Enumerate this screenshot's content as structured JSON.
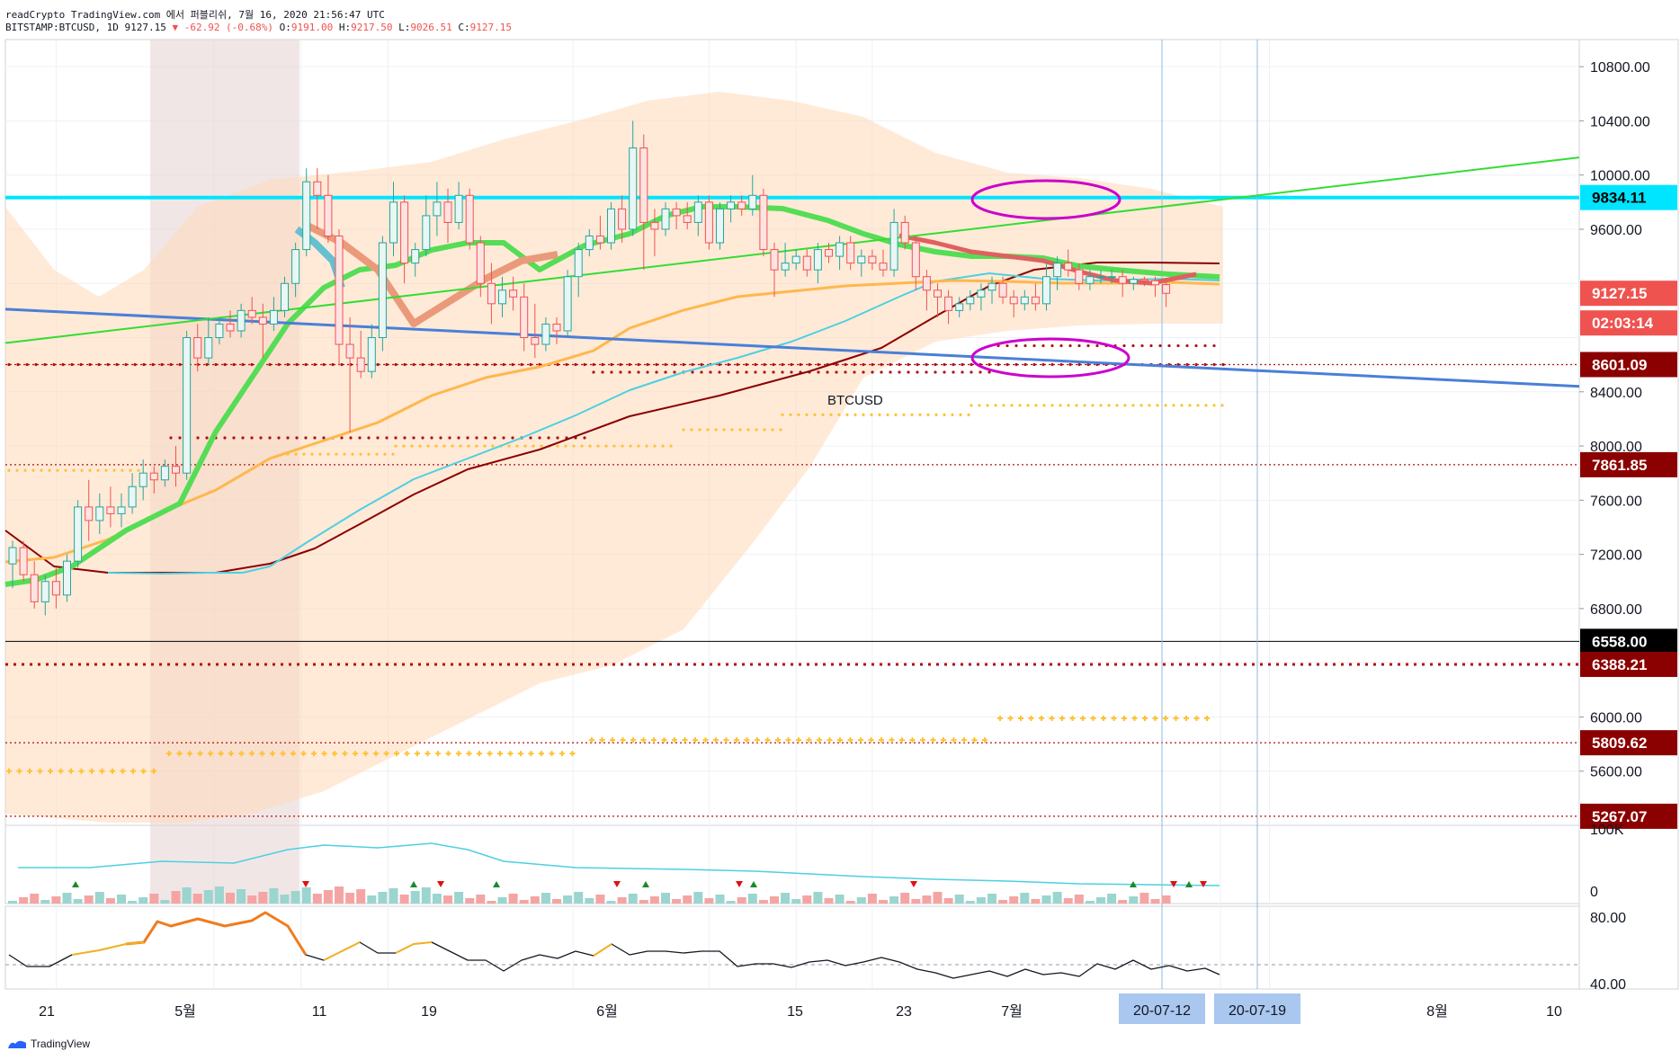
{
  "header": {
    "title_line": "readCrypto TradingView.com 에서 퍼블리쉬, 7월 16, 2020 21:56:47 UTC",
    "symbol": "BITSTAMP:BTCUSD, 1D",
    "last": "9127.15",
    "change": "-62.92 (-0.68%)",
    "open_label": "O:",
    "open": "9191.00",
    "high_label": "H:",
    "high": "9217.50",
    "low_label": "L:",
    "low": "9026.51",
    "close_label": "C:",
    "close": "9127.15"
  },
  "chart_data": [
    {
      "type": "candlestick",
      "symbol_label": "BTCUSD",
      "ylim": [
        5200,
        11000
      ],
      "y_ticks": [
        "10800.00",
        "10400.00",
        "10000.00",
        "9600.00",
        "8400.00",
        "8000.00",
        "7600.00",
        "7200.00",
        "6800.00",
        "6000.00",
        "5600.00"
      ],
      "x_ticks": [
        "21",
        "5월",
        "11",
        "19",
        "6월",
        "15",
        "23",
        "7월",
        "8월",
        "10"
      ],
      "x_highlight_labels": [
        "20-07-12",
        "20-07-19"
      ],
      "price_labels": [
        {
          "text": "9834.11",
          "color": "#00e5ff",
          "textColor": "#000000"
        },
        {
          "text": "9127.15",
          "color": "#ef5350",
          "textColor": "#ffffff"
        },
        {
          "text": "02:03:14",
          "color": "#ef5350",
          "textColor": "#ffffff"
        },
        {
          "text": "8601.09",
          "color": "#8b0000",
          "textColor": "#ffffff"
        },
        {
          "text": "7861.85",
          "color": "#8b0000",
          "textColor": "#ffffff"
        },
        {
          "text": "6558.00",
          "color": "#000000",
          "textColor": "#ffffff"
        },
        {
          "text": "6388.21",
          "color": "#8b0000",
          "textColor": "#ffffff"
        },
        {
          "text": "5809.62",
          "color": "#8b0000",
          "textColor": "#ffffff"
        },
        {
          "text": "5267.07",
          "color": "#8b0000",
          "textColor": "#ffffff"
        }
      ],
      "horizontal_levels": [
        9834.11,
        8601.09,
        7861.85,
        6558.0,
        6388.21,
        5809.62,
        5267.07
      ],
      "candles_ohlc": [
        [
          7130,
          7300,
          6950,
          7250
        ],
        [
          7250,
          7300,
          7000,
          7050
        ],
        [
          7050,
          7150,
          6800,
          6850
        ],
        [
          6850,
          7050,
          6750,
          7000
        ],
        [
          7000,
          7100,
          6800,
          6900
        ],
        [
          6900,
          7200,
          6850,
          7150
        ],
        [
          7150,
          7600,
          7100,
          7550
        ],
        [
          7550,
          7750,
          7300,
          7450
        ],
        [
          7450,
          7650,
          7350,
          7550
        ],
        [
          7550,
          7700,
          7400,
          7500
        ],
        [
          7500,
          7650,
          7400,
          7550
        ],
        [
          7550,
          7800,
          7500,
          7700
        ],
        [
          7700,
          7900,
          7600,
          7800
        ],
        [
          7800,
          7850,
          7650,
          7750
        ],
        [
          7750,
          7900,
          7700,
          7850
        ],
        [
          7850,
          8000,
          7700,
          7800
        ],
        [
          7800,
          8850,
          7750,
          8800
        ],
        [
          8800,
          8900,
          8550,
          8650
        ],
        [
          8650,
          8950,
          8600,
          8800
        ],
        [
          8800,
          8950,
          8750,
          8900
        ],
        [
          8900,
          9000,
          8800,
          8850
        ],
        [
          8850,
          9050,
          8800,
          9000
        ],
        [
          9000,
          9100,
          8900,
          8950
        ],
        [
          8950,
          9050,
          8650,
          8900
        ],
        [
          8900,
          9100,
          8850,
          9000
        ],
        [
          9000,
          9250,
          8950,
          9200
        ],
        [
          9200,
          9500,
          9100,
          9450
        ],
        [
          9450,
          10050,
          9400,
          9950
        ],
        [
          9950,
          10050,
          9600,
          9850
        ],
        [
          9850,
          10000,
          9500,
          9550
        ],
        [
          9550,
          9600,
          8600,
          8750
        ],
        [
          8750,
          8950,
          8100,
          8650
        ],
        [
          8650,
          8850,
          8500,
          8550
        ],
        [
          8550,
          8900,
          8500,
          8800
        ],
        [
          8800,
          9550,
          8700,
          9500
        ],
        [
          9500,
          9950,
          9400,
          9800
        ],
        [
          9800,
          9850,
          9200,
          9350
        ],
        [
          9350,
          9500,
          9250,
          9450
        ],
        [
          9450,
          9850,
          9400,
          9700
        ],
        [
          9700,
          9950,
          9550,
          9800
        ],
        [
          9800,
          9900,
          9500,
          9650
        ],
        [
          9650,
          9950,
          9600,
          9850
        ],
        [
          9850,
          9900,
          9450,
          9500
        ],
        [
          9500,
          9550,
          9100,
          9200
        ],
        [
          9200,
          9350,
          8900,
          9050
        ],
        [
          9050,
          9250,
          8950,
          9150
        ],
        [
          9150,
          9250,
          9000,
          9100
        ],
        [
          9100,
          9200,
          8700,
          8800
        ],
        [
          8800,
          9050,
          8650,
          8750
        ],
        [
          8750,
          8950,
          8700,
          8900
        ],
        [
          8900,
          8950,
          8750,
          8850
        ],
        [
          8850,
          9300,
          8800,
          9250
        ],
        [
          9250,
          9500,
          9100,
          9450
        ],
        [
          9450,
          9600,
          9400,
          9550
        ],
        [
          9550,
          9700,
          9450,
          9500
        ],
        [
          9500,
          9800,
          9450,
          9750
        ],
        [
          9750,
          9850,
          9500,
          9600
        ],
        [
          9600,
          10400,
          9550,
          10200
        ],
        [
          10200,
          10300,
          9300,
          9650
        ],
        [
          9650,
          9750,
          9400,
          9600
        ],
        [
          9600,
          9800,
          9550,
          9750
        ],
        [
          9750,
          9800,
          9600,
          9700
        ],
        [
          9700,
          9800,
          9600,
          9650
        ],
        [
          9650,
          9850,
          9550,
          9800
        ],
        [
          9800,
          9850,
          9450,
          9500
        ],
        [
          9500,
          9800,
          9450,
          9750
        ],
        [
          9750,
          9850,
          9650,
          9800
        ],
        [
          9800,
          9850,
          9700,
          9750
        ],
        [
          9750,
          10000,
          9700,
          9850
        ],
        [
          9850,
          9900,
          9400,
          9450
        ],
        [
          9450,
          9500,
          9100,
          9300
        ],
        [
          9300,
          9500,
          9250,
          9350
        ],
        [
          9350,
          9450,
          9300,
          9400
        ],
        [
          9400,
          9450,
          9250,
          9300
        ],
        [
          9300,
          9500,
          9200,
          9450
        ],
        [
          9450,
          9500,
          9350,
          9400
        ],
        [
          9400,
          9550,
          9300,
          9500
        ],
        [
          9500,
          9550,
          9300,
          9350
        ],
        [
          9350,
          9450,
          9250,
          9400
        ],
        [
          9400,
          9450,
          9300,
          9350
        ],
        [
          9350,
          9450,
          9250,
          9300
        ],
        [
          9300,
          9750,
          9250,
          9650
        ],
        [
          9650,
          9700,
          9450,
          9500
        ],
        [
          9500,
          9550,
          9150,
          9250
        ],
        [
          9250,
          9300,
          9000,
          9150
        ],
        [
          9150,
          9200,
          8950,
          9100
        ],
        [
          9100,
          9150,
          8900,
          9000
        ],
        [
          9000,
          9100,
          8950,
          9050
        ],
        [
          9050,
          9150,
          9000,
          9100
        ],
        [
          9100,
          9200,
          9000,
          9150
        ],
        [
          9150,
          9250,
          9050,
          9200
        ],
        [
          9200,
          9250,
          9050,
          9100
        ],
        [
          9100,
          9150,
          8950,
          9050
        ],
        [
          9050,
          9150,
          9000,
          9100
        ],
        [
          9100,
          9200,
          9000,
          9050
        ],
        [
          9050,
          9350,
          9000,
          9250
        ],
        [
          9250,
          9400,
          9150,
          9350
        ],
        [
          9350,
          9450,
          9250,
          9300
        ],
        [
          9300,
          9350,
          9150,
          9200
        ],
        [
          9200,
          9300,
          9150,
          9250
        ],
        [
          9250,
          9300,
          9200,
          9250
        ],
        [
          9250,
          9300,
          9200,
          9250
        ],
        [
          9250,
          9300,
          9100,
          9200
        ],
        [
          9200,
          9250,
          9150,
          9230
        ],
        [
          9230,
          9250,
          9180,
          9220
        ],
        [
          9220,
          9250,
          9100,
          9190
        ],
        [
          9191,
          9217.5,
          9026.51,
          9127.15
        ]
      ]
    },
    {
      "type": "bar",
      "name": "volume",
      "y_ticks": [
        "100K",
        "0"
      ]
    },
    {
      "type": "line",
      "name": "oscillator",
      "y_ticks": [
        "80.00",
        "40.00"
      ]
    }
  ],
  "colors": {
    "up_candle": "#26a69a",
    "down_candle": "#ef5350",
    "cyan_level": "#00e5ff",
    "blue_trend": "#4a7fd8",
    "green_trend": "#33dd33",
    "cloud": "#ffd8b8",
    "ellipse": "#cc00cc",
    "dotted_red": "#b01010",
    "dotted_yellow": "#ffc233",
    "ma_orange": "#ffb74d",
    "ma_darkred": "#8b0000",
    "ma_cyan": "#4dd0e1"
  },
  "footer": {
    "brand": "TradingView"
  }
}
